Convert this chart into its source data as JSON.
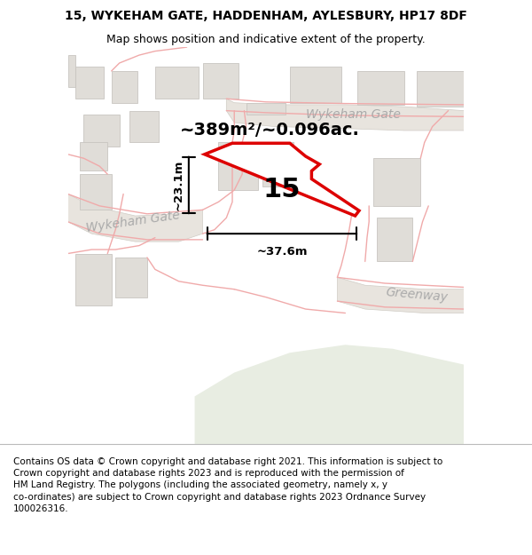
{
  "title": "15, WYKEHAM GATE, HADDENHAM, AYLESBURY, HP17 8DF",
  "subtitle": "Map shows position and indicative extent of the property.",
  "footer": "Contains OS data © Crown copyright and database right 2021. This information is subject to\nCrown copyright and database rights 2023 and is reproduced with the permission of\nHM Land Registry. The polygons (including the associated geometry, namely x, y\nco-ordinates) are subject to Crown copyright and database rights 2023 Ordnance Survey\n100026316.",
  "map_bg": "#f7f5f2",
  "green_area_color": "#e8ede2",
  "building_color": "#e0ddd8",
  "building_edge": "#c8c5c0",
  "road_fill": "#e8e4de",
  "road_edge": "#d0ccc5",
  "plot_outline_color": "#dd0000",
  "plot_fill_color": "#ffffff",
  "dim_color": "#111111",
  "label_number": "15",
  "area_label": "~389m²/~0.096ac.",
  "dim_width": "~37.6m",
  "dim_height": "~23.1m",
  "street_label_wykeham_left": "Wykeham Gate",
  "street_label_wykeham_right": "Wykeham Gate",
  "street_label_greenway": "Greenway",
  "pink_road_color": "#f0aaaa",
  "figsize": [
    6.0,
    6.25
  ],
  "dpi": 100,
  "title_fontsize": 10,
  "subtitle_fontsize": 9,
  "footer_fontsize": 7.5,
  "area_label_fontsize": 14,
  "number_fontsize": 22,
  "street_fontsize": 10,
  "dim_fontsize": 9.5
}
